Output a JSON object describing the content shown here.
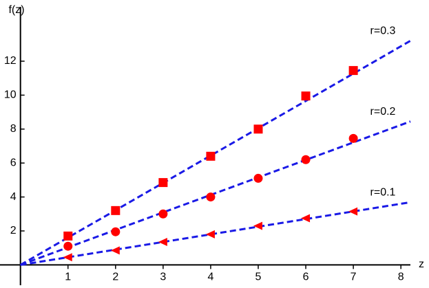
{
  "chart_data": {
    "type": "scatter",
    "y_label": "f(z)",
    "x_label": "z",
    "xlim": [
      -0.43,
      8.2
    ],
    "ylim": [
      -1.2,
      15.2
    ],
    "xticks": [
      1,
      2,
      3,
      4,
      5,
      6,
      7,
      8
    ],
    "yticks": [
      2,
      4,
      6,
      8,
      10,
      12
    ],
    "line_color": "#1a1ae6",
    "series": [
      {
        "name": "r=0.3",
        "color": "#ff0000",
        "marker": "square",
        "x": [
          1,
          2,
          3,
          4,
          5,
          6,
          7
        ],
        "values": [
          1.7,
          3.2,
          4.85,
          6.4,
          8.0,
          9.95,
          11.45
        ],
        "fit": {
          "x": [
            0,
            8.2
          ],
          "y": [
            0,
            13.2
          ]
        }
      },
      {
        "name": "r=0.2",
        "color": "#ff0000",
        "marker": "circle",
        "x": [
          1,
          2,
          3,
          4,
          5,
          6,
          7
        ],
        "values": [
          1.1,
          1.95,
          3.0,
          4.0,
          5.1,
          6.2,
          7.45
        ],
        "fit": {
          "x": [
            0,
            8.2
          ],
          "y": [
            0,
            8.45
          ]
        }
      },
      {
        "name": "r=0.1",
        "color": "#ff0000",
        "marker": "triangle-left",
        "x": [
          1,
          2,
          3,
          4,
          5,
          6,
          7
        ],
        "values": [
          0.45,
          0.85,
          1.35,
          1.8,
          2.3,
          2.75,
          3.15
        ],
        "fit": {
          "x": [
            0,
            8.2
          ],
          "y": [
            0,
            3.69
          ]
        }
      }
    ]
  }
}
